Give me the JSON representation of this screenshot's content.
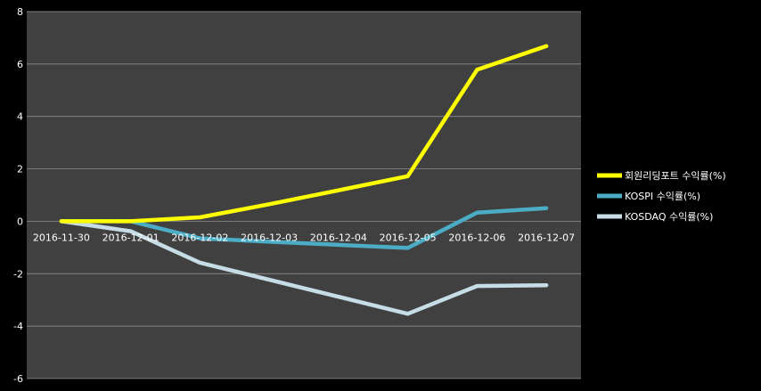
{
  "chart_data": {
    "type": "line",
    "title": "",
    "xlabel": "",
    "ylabel": "",
    "categories": [
      "2016-11-30",
      "2016-12-01",
      "2016-12-02",
      "2016-12-03",
      "2016-12-04",
      "2016-12-05",
      "2016-12-06",
      "2016-12-07"
    ],
    "ylim": [
      -6,
      8
    ],
    "yticks": [
      -6,
      -4,
      -2,
      0,
      2,
      4,
      6,
      8
    ],
    "grid": true,
    "legend_position": "right",
    "series": [
      {
        "name": "회원리딩포트 수익률(%)",
        "color": "#FFFF00",
        "values": [
          0,
          0,
          0.15,
          0.65,
          1.18,
          1.72,
          5.78,
          6.68
        ]
      },
      {
        "name": "KOSPI 수익률(%)",
        "color": "#4BACC6",
        "values": [
          0,
          0,
          -0.65,
          -0.78,
          -0.9,
          -1.02,
          0.33,
          0.5
        ]
      },
      {
        "name": "KOSDAQ 수익률(%)",
        "color": "#C6DDE6",
        "values": [
          0,
          -0.38,
          -1.58,
          -2.23,
          -2.88,
          -3.53,
          -2.47,
          -2.44
        ]
      }
    ]
  }
}
